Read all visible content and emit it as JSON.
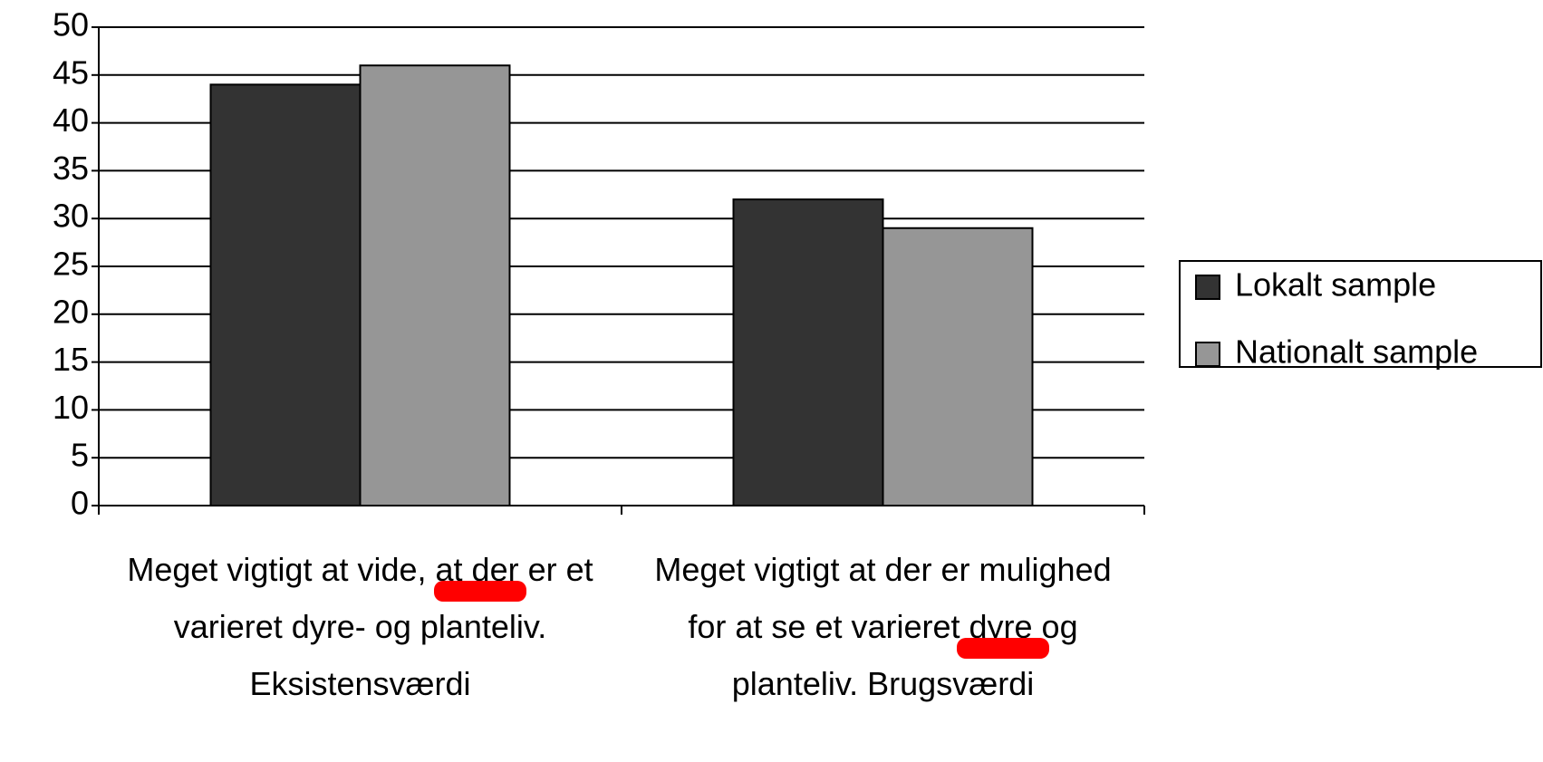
{
  "chart_data": {
    "type": "bar",
    "categories": [
      "Meget vigtigt at vide, at der er et varieret dyre- og planteliv. Eksistensværdi",
      "Meget vigtigt at der er mulighed for at se et varieret dyre og planteliv. Brugsværdi"
    ],
    "series": [
      {
        "name": "Lokalt sample",
        "color": "#333333",
        "values": [
          44,
          32
        ]
      },
      {
        "name": "Nationalt sample",
        "color": "#969696",
        "values": [
          46,
          29
        ]
      }
    ],
    "ylim": [
      0,
      50
    ],
    "yticks": [
      0,
      5,
      10,
      15,
      20,
      25,
      30,
      35,
      40,
      45,
      50
    ],
    "grid": true,
    "legend": "right"
  }
}
